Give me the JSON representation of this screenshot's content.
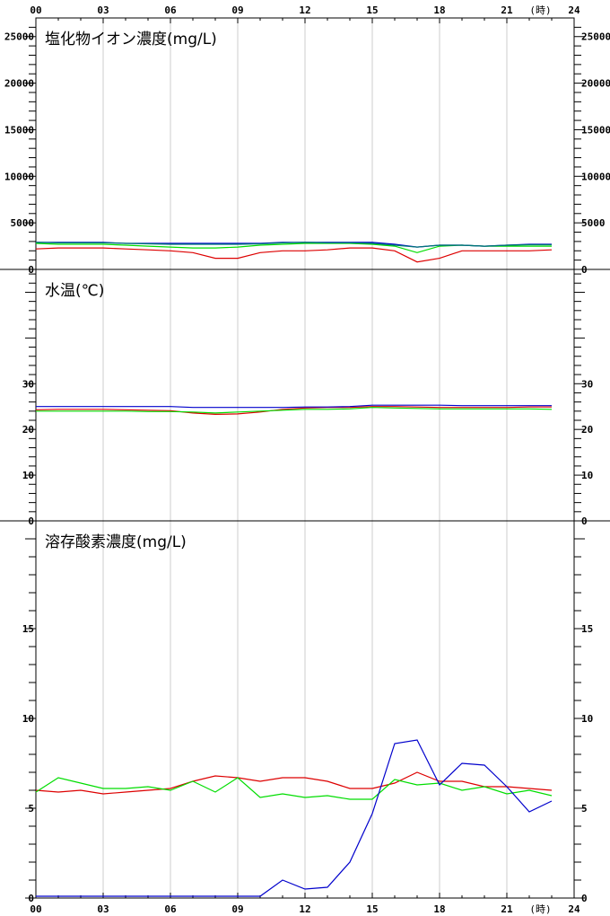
{
  "x_axis": {
    "ticks": [
      "00",
      "03",
      "06",
      "09",
      "12",
      "15",
      "18",
      "21",
      "24"
    ],
    "unit": "(時)",
    "range": [
      0,
      24
    ]
  },
  "colors": {
    "red": "#dd0000",
    "green": "#00dd00",
    "blue": "#0000cc",
    "teal": "#007777",
    "grid": "#cccccc",
    "frame": "#000000"
  },
  "chart_data": [
    {
      "type": "line",
      "title": "塩化物イオン濃度(mg/L)",
      "ylim": [
        0,
        27000
      ],
      "y_ticks": [
        "0",
        "5000",
        "10000",
        "15000",
        "20000",
        "25000"
      ],
      "y_tick_values": [
        0,
        5000,
        10000,
        15000,
        20000,
        25000
      ],
      "x": [
        0,
        1,
        2,
        3,
        4,
        5,
        6,
        7,
        8,
        9,
        10,
        11,
        12,
        13,
        14,
        15,
        16,
        17,
        18,
        19,
        20,
        21,
        22,
        23
      ],
      "series": [
        {
          "color": "red",
          "values": [
            2200,
            2300,
            2300,
            2300,
            2200,
            2100,
            2000,
            1800,
            1200,
            1200,
            1800,
            2000,
            2000,
            2100,
            2300,
            2300,
            2000,
            800,
            1200,
            2000,
            2000,
            2000,
            2000,
            2100
          ]
        },
        {
          "color": "green",
          "values": [
            2800,
            2700,
            2700,
            2700,
            2600,
            2500,
            2400,
            2300,
            2300,
            2400,
            2600,
            2700,
            2800,
            2800,
            2800,
            2700,
            2500,
            1800,
            2500,
            2600,
            2500,
            2500,
            2500,
            2500
          ]
        },
        {
          "color": "blue",
          "values": [
            2900,
            2900,
            2900,
            2900,
            2800,
            2800,
            2800,
            2800,
            2800,
            2800,
            2800,
            2900,
            2900,
            2900,
            2900,
            2900,
            2700,
            2400,
            2600,
            2600,
            2500,
            2600,
            2700,
            2700
          ]
        },
        {
          "color": "teal",
          "values": [
            2900,
            2850,
            2850,
            2850,
            2800,
            2750,
            2700,
            2700,
            2700,
            2700,
            2750,
            2850,
            2900,
            2850,
            2850,
            2800,
            2600,
            2400,
            2600,
            2600,
            2500,
            2600,
            2650,
            2650
          ]
        }
      ]
    },
    {
      "type": "line",
      "title": "水温(℃)",
      "ylim": [
        0,
        55
      ],
      "y_ticks": [
        "0",
        "10",
        "20",
        "30"
      ],
      "y_tick_values": [
        0,
        10,
        20,
        30
      ],
      "x": [
        0,
        1,
        2,
        3,
        4,
        5,
        6,
        7,
        8,
        9,
        10,
        11,
        12,
        13,
        14,
        15,
        16,
        17,
        18,
        19,
        20,
        21,
        22,
        23
      ],
      "series": [
        {
          "color": "red",
          "values": [
            24.3,
            24.4,
            24.4,
            24.4,
            24.3,
            24.2,
            24.1,
            23.6,
            23.3,
            23.4,
            23.8,
            24.4,
            24.7,
            24.8,
            24.8,
            25.0,
            25.0,
            24.9,
            24.8,
            24.8,
            24.8,
            24.8,
            24.9,
            24.9
          ]
        },
        {
          "color": "green",
          "values": [
            24.0,
            24.0,
            24.0,
            24.0,
            24.0,
            23.9,
            23.9,
            23.8,
            23.6,
            23.8,
            24.0,
            24.2,
            24.4,
            24.4,
            24.5,
            24.8,
            24.7,
            24.6,
            24.5,
            24.5,
            24.5,
            24.5,
            24.5,
            24.4
          ]
        },
        {
          "color": "blue",
          "values": [
            25.0,
            25.0,
            25.0,
            25.0,
            25.0,
            25.0,
            25.0,
            24.8,
            24.8,
            24.8,
            24.8,
            24.8,
            24.9,
            24.9,
            25.0,
            25.3,
            25.3,
            25.3,
            25.3,
            25.2,
            25.2,
            25.2,
            25.2,
            25.2
          ]
        }
      ]
    },
    {
      "type": "line",
      "title": "溶存酸素濃度(mg/L)",
      "ylim": [
        0,
        21
      ],
      "y_ticks": [
        "0",
        "5",
        "10",
        "15"
      ],
      "y_tick_values": [
        0,
        5,
        10,
        15
      ],
      "x": [
        0,
        1,
        2,
        3,
        4,
        5,
        6,
        7,
        8,
        9,
        10,
        11,
        12,
        13,
        14,
        15,
        16,
        17,
        18,
        19,
        20,
        21,
        22,
        23
      ],
      "series": [
        {
          "color": "red",
          "values": [
            6.0,
            5.9,
            6.0,
            5.8,
            5.9,
            6.0,
            6.1,
            6.5,
            6.8,
            6.7,
            6.5,
            6.7,
            6.7,
            6.5,
            6.1,
            6.1,
            6.4,
            7.0,
            6.5,
            6.5,
            6.2,
            6.2,
            6.1,
            6.0
          ]
        },
        {
          "color": "green",
          "values": [
            5.9,
            6.7,
            6.4,
            6.1,
            6.1,
            6.2,
            6.0,
            6.5,
            5.9,
            6.7,
            5.6,
            5.8,
            5.6,
            5.7,
            5.5,
            5.5,
            6.6,
            6.3,
            6.4,
            6.0,
            6.2,
            5.8,
            6.0,
            5.7
          ]
        },
        {
          "color": "blue",
          "values": [
            0.1,
            0.1,
            0.1,
            0.1,
            0.1,
            0.1,
            0.1,
            0.1,
            0.1,
            0.1,
            0.1,
            1.0,
            0.5,
            0.6,
            2.0,
            4.7,
            8.6,
            8.8,
            6.3,
            7.5,
            7.4,
            6.2,
            4.8,
            5.4
          ]
        }
      ]
    }
  ]
}
